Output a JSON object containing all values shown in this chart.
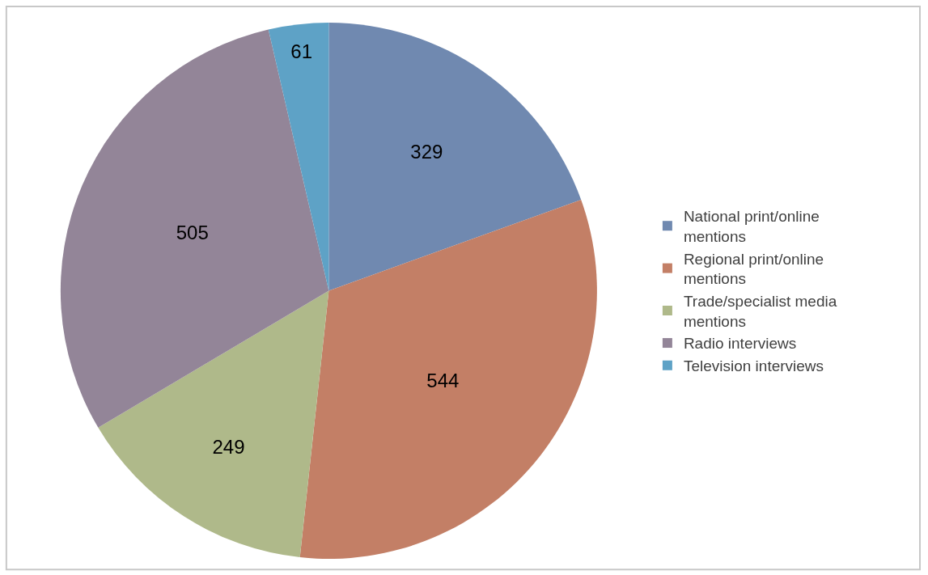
{
  "chart_data": {
    "type": "pie",
    "categories": [
      "National print/online mentions",
      "Regional print/online mentions",
      "Trade/specialist media mentions",
      "Radio interviews",
      "Television interviews"
    ],
    "values": [
      329,
      544,
      249,
      505,
      61
    ],
    "colors": [
      "#7089b0",
      "#c37f66",
      "#afb98a",
      "#938598",
      "#5ea2c6"
    ],
    "data_labels": true,
    "legend": "right"
  }
}
